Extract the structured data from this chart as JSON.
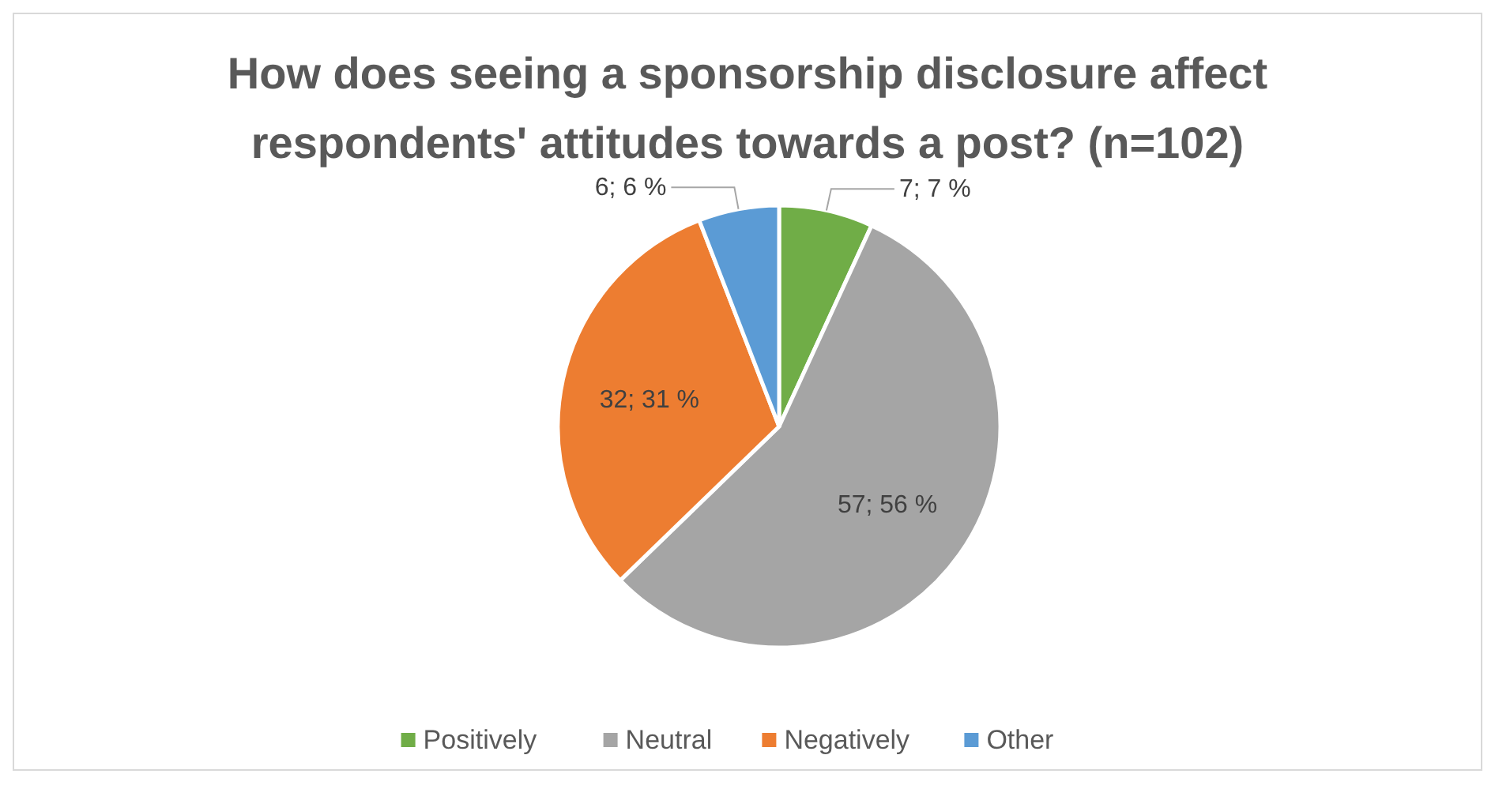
{
  "chart_data": {
    "type": "pie",
    "title": "How does seeing a sponsorship disclosure affect respondents' attitudes towards a post? (n=102)",
    "categories": [
      "Positively",
      "Neutral",
      "Negatively",
      "Other"
    ],
    "values": [
      7,
      57,
      32,
      6
    ],
    "colors": [
      "#70ad47",
      "#a5a5a5",
      "#ed7d31",
      "#5b9bd5"
    ],
    "value_labels": [
      "7; 7 %",
      "57; 56 %",
      "32; 31 %",
      "6; 6 %"
    ],
    "legend": "bottom"
  }
}
